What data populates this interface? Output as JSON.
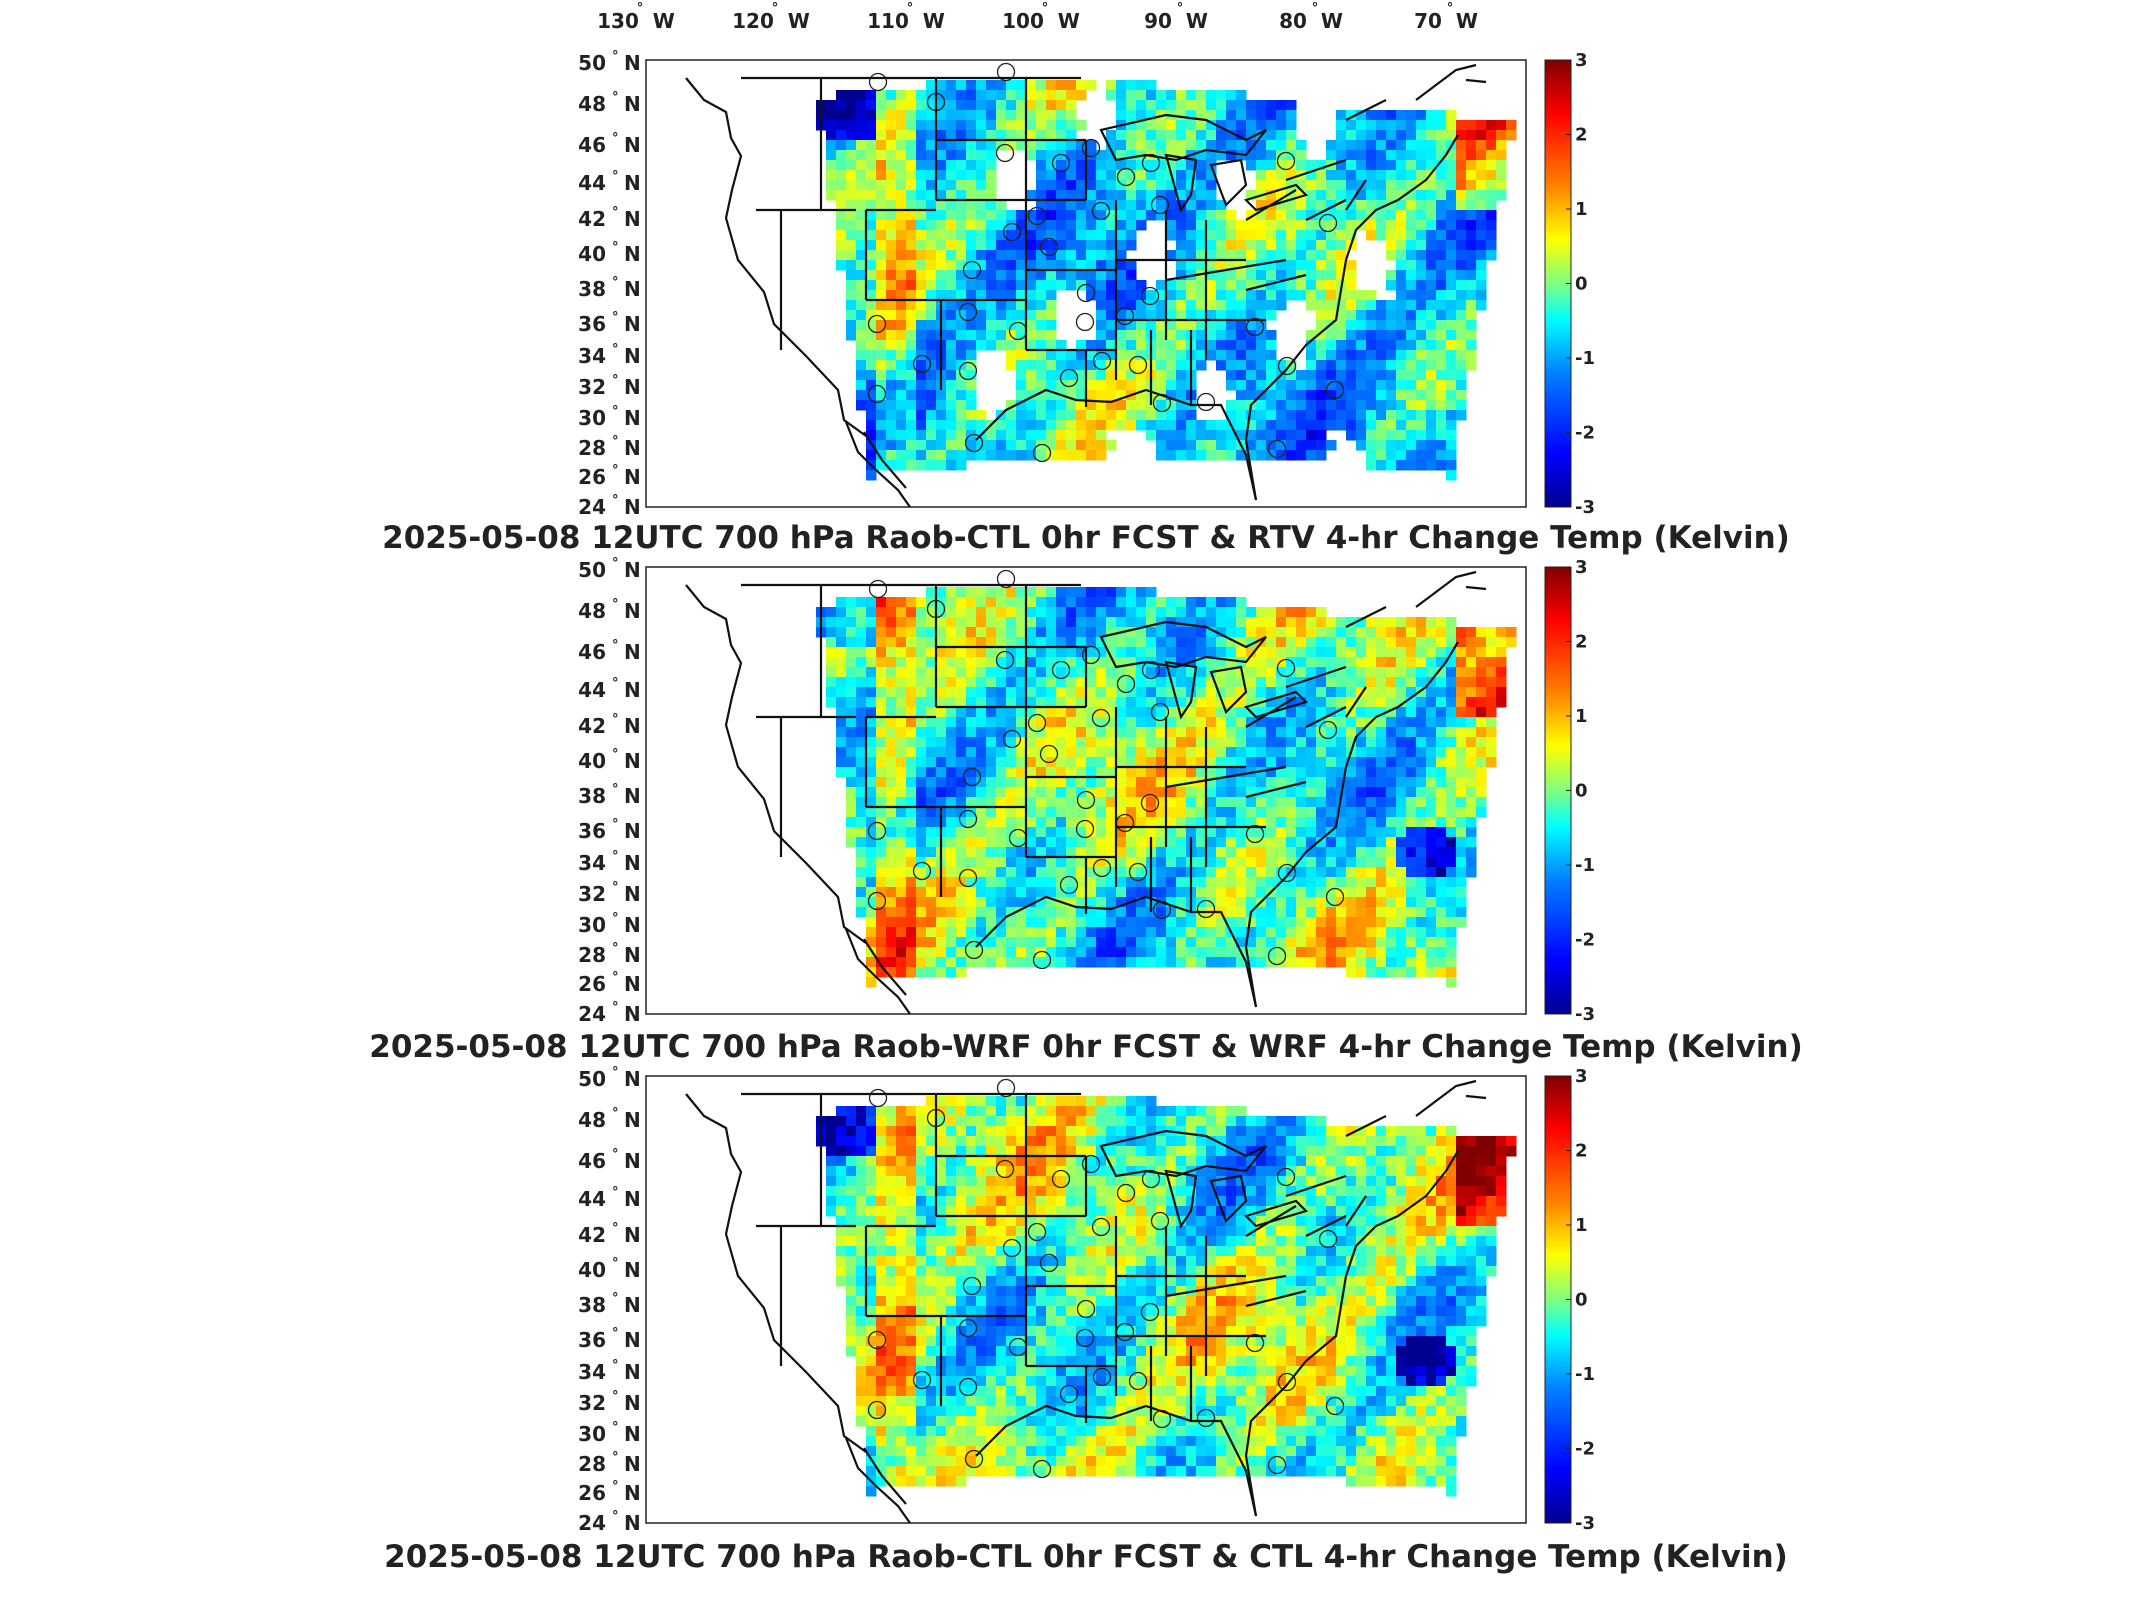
{
  "longitude_labels": [
    "130",
    "120",
    "110",
    "100",
    "90",
    "80",
    "70"
  ],
  "latitude_labels": [
    "50",
    "48",
    "46",
    "44",
    "42",
    "40",
    "38",
    "36",
    "34",
    "32",
    "30",
    "28",
    "26",
    "24"
  ],
  "lon_suffix": "W",
  "lat_suffix": "N",
  "colorbar": {
    "ticks": [
      "3",
      "2",
      "1",
      "0",
      "-1",
      "-2",
      "-3"
    ],
    "range": [
      -3,
      3
    ],
    "colormap": "jet",
    "colors": [
      "#00008f",
      "#0000ff",
      "#0080ff",
      "#00ffff",
      "#80ff80",
      "#ffff00",
      "#ff8000",
      "#ff0000",
      "#800000"
    ]
  },
  "panels": [
    {
      "title": "2025-05-08 12UTC 700 hPa Raob-CTL 0hr FCST & RTV 4-hr Change Temp (Kelvin)",
      "field": "RTV 4-hr change (retrieval, with gaps)"
    },
    {
      "title": "2025-05-08 12UTC 700 hPa Raob-WRF 0hr FCST & WRF 4-hr Change Temp (Kelvin)",
      "field": "WRF 4-hr change"
    },
    {
      "title": "2025-05-08 12UTC 700 hPa Raob-CTL 0hr FCST & CTL 4-hr Change Temp (Kelvin)",
      "field": "CTL 4-hr change"
    }
  ]
}
